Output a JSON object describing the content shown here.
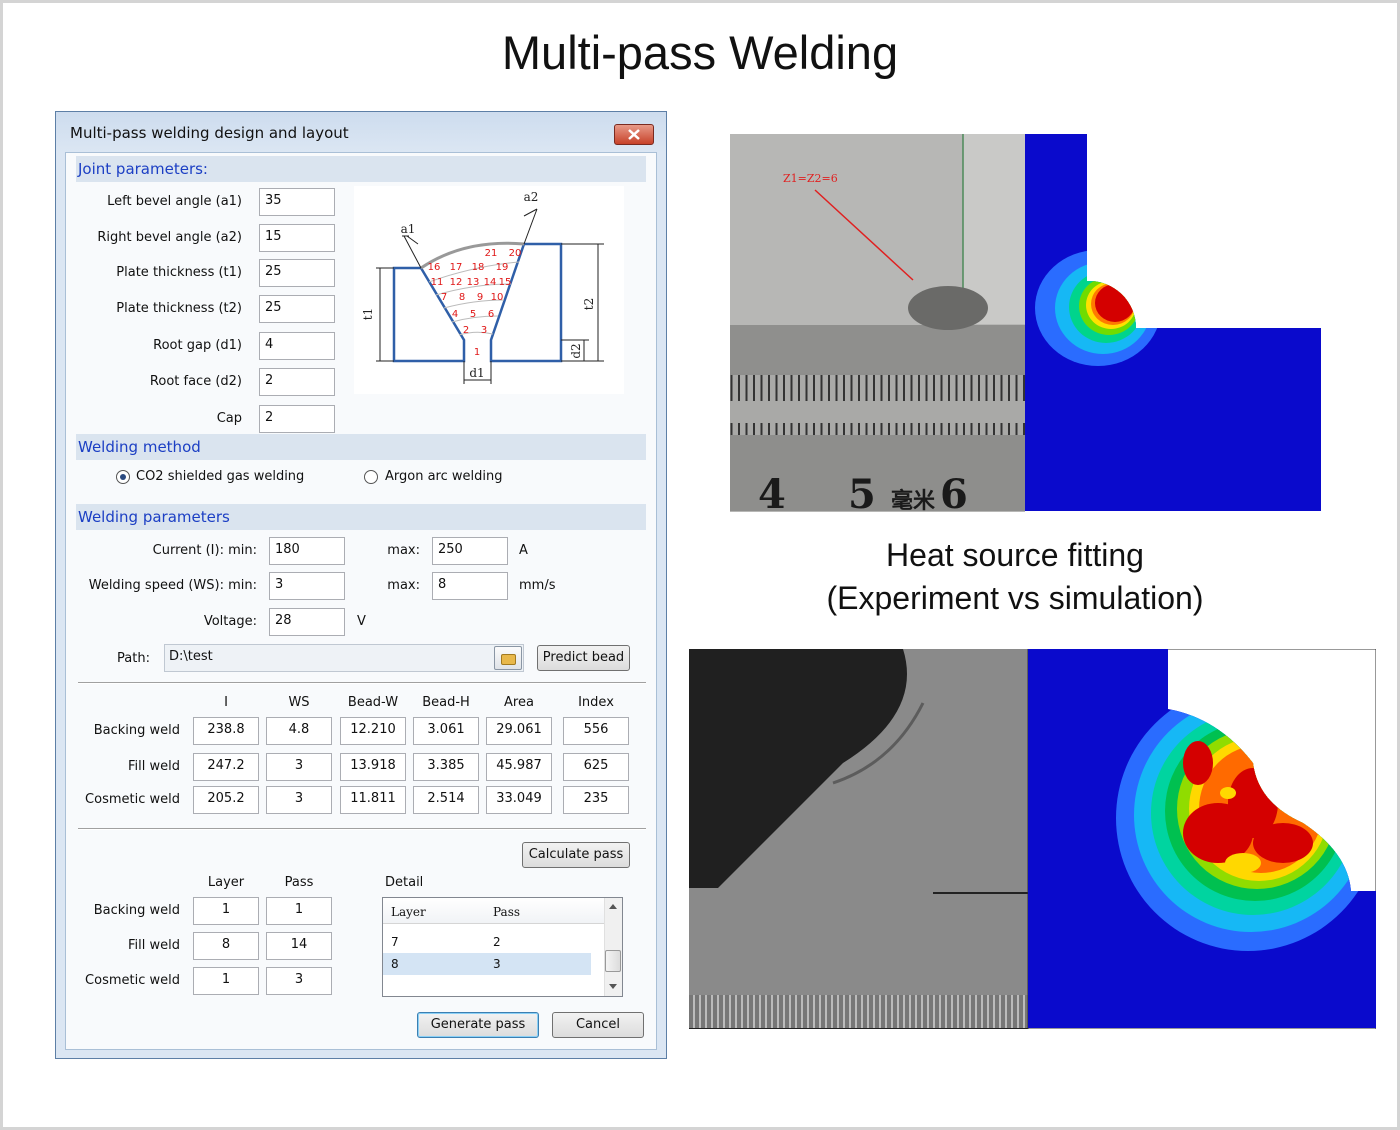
{
  "header": {
    "title": "Multi-pass Welding"
  },
  "dialog": {
    "title": "Multi-pass welding design and layout",
    "joint_parameters": {
      "heading": "Joint parameters:",
      "fields": [
        {
          "label": "Left bevel angle (a1)",
          "value": "35"
        },
        {
          "label": "Right bevel angle (a2)",
          "value": "15"
        },
        {
          "label": "Plate thickness (t1)",
          "value": "25"
        },
        {
          "label": "Plate thickness (t2)",
          "value": "25"
        },
        {
          "label": "Root gap (d1)",
          "value": "4"
        },
        {
          "label": "Root face (d2)",
          "value": "2"
        },
        {
          "label": "Cap",
          "value": "2"
        }
      ]
    },
    "diagram": {
      "labels": [
        "a1",
        "a2",
        "t1",
        "t2",
        "d1",
        "d2"
      ],
      "bead_numbers": [
        "1",
        "2",
        "3",
        "4",
        "5",
        "6",
        "7",
        "8",
        "9",
        "10",
        "11",
        "12",
        "13",
        "14",
        "15",
        "16",
        "17",
        "18",
        "19",
        "20",
        "21"
      ]
    },
    "welding_method": {
      "heading": "Welding method",
      "options": [
        {
          "label": "CO2 shielded gas welding",
          "selected": true
        },
        {
          "label": "Argon arc welding",
          "selected": false
        }
      ]
    },
    "welding_parameters": {
      "heading": "Welding parameters",
      "current": {
        "label": "Current (I): min:",
        "min": "180",
        "max_label": "max:",
        "max": "250",
        "unit": "A"
      },
      "speed": {
        "label": "Welding speed (WS): min:",
        "min": "3",
        "max_label": "max:",
        "max": "8",
        "unit": "mm/s"
      },
      "voltage": {
        "label": "Voltage:",
        "value": "28",
        "unit": "V"
      },
      "path": {
        "label": "Path:",
        "value": "D:\\test"
      },
      "predict_button": "Predict bead"
    },
    "results": {
      "columns": [
        "I",
        "WS",
        "Bead-W",
        "Bead-H",
        "Area",
        "Index"
      ],
      "rows": [
        {
          "label": "Backing weld",
          "cells": [
            "238.8",
            "4.8",
            "12.210",
            "3.061",
            "29.061",
            "556"
          ]
        },
        {
          "label": "Fill weld",
          "cells": [
            "247.2",
            "3",
            "13.918",
            "3.385",
            "45.987",
            "625"
          ]
        },
        {
          "label": "Cosmetic weld",
          "cells": [
            "205.2",
            "3",
            "11.811",
            "2.514",
            "33.049",
            "235"
          ]
        }
      ]
    },
    "calculate_button": "Calculate pass",
    "passes": {
      "columns": [
        "Layer",
        "Pass"
      ],
      "rows": [
        {
          "label": "Backing weld",
          "cells": [
            "1",
            "1"
          ]
        },
        {
          "label": "Fill weld",
          "cells": [
            "8",
            "14"
          ]
        },
        {
          "label": "Cosmetic weld",
          "cells": [
            "1",
            "3"
          ]
        }
      ]
    },
    "detail": {
      "label": "Detail",
      "columns": [
        "Layer",
        "Pass"
      ],
      "rows": [
        [
          "7",
          "2"
        ],
        [
          "8",
          "3"
        ]
      ],
      "selected_row": 1
    },
    "buttons": [
      "Generate pass",
      "Cancel"
    ]
  },
  "figures": {
    "experiment_annotation": "Z1=Z2=6",
    "ruler_labels": [
      "4",
      "5",
      "毫米",
      "6"
    ],
    "caption": [
      "Heat source fitting",
      "(Experiment vs simulation)"
    ]
  }
}
